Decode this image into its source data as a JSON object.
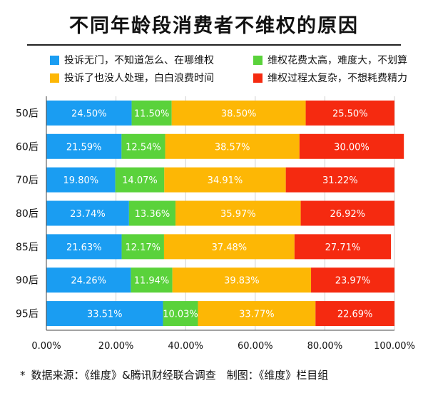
{
  "title": "不同年龄段消费者不维权的原因",
  "legend": [
    {
      "label": "投诉无门，不知道怎么、在哪维权",
      "color": "#1a9df2"
    },
    {
      "label": "维权花费太高，难度大，不划算",
      "color": "#5ad23b"
    },
    {
      "label": "投诉了也没人处理，白白浪费时间",
      "color": "#fdb705"
    },
    {
      "label": "维权过程太复杂，不想耗费精力",
      "color": "#f52a10"
    }
  ],
  "footer": {
    "star": "*",
    "text": "数据来源：《维度》&腾讯财经联合调查　制图：《维度》栏目组"
  },
  "chart_data": {
    "type": "bar",
    "orientation": "horizontal",
    "stacked": true,
    "categories": [
      "50后",
      "60后",
      "70后",
      "80后",
      "85后",
      "90后",
      "95后"
    ],
    "series": [
      {
        "name": "投诉无门，不知道怎么、在哪维权",
        "color": "#1a9df2",
        "values": [
          24.5,
          21.59,
          19.8,
          23.74,
          21.63,
          24.26,
          33.51
        ],
        "labels": [
          "24.50%",
          "21.59%",
          "19.80%",
          "23.74%",
          "21.63%",
          "24.26%",
          "33.51%"
        ]
      },
      {
        "name": "维权花费太高，难度大，不划算",
        "color": "#5ad23b",
        "values": [
          11.5,
          12.54,
          14.07,
          13.36,
          12.17,
          11.94,
          10.03
        ],
        "labels": [
          "11.50%",
          "12.54%",
          "14.07%",
          "13.36%",
          "12.17%",
          "11.94%",
          "10.03%"
        ]
      },
      {
        "name": "投诉了也没人处理，白白浪费时间",
        "color": "#fdb705",
        "values": [
          38.5,
          38.57,
          34.91,
          35.97,
          37.48,
          39.83,
          33.77
        ],
        "labels": [
          "38.50%",
          "38.57%",
          "34.91%",
          "35.97%",
          "37.48%",
          "39.83%",
          "33.77%"
        ]
      },
      {
        "name": "维权过程太复杂，不想耗费精力",
        "color": "#f52a10",
        "values": [
          25.5,
          30.0,
          31.22,
          26.92,
          27.71,
          23.97,
          22.69
        ],
        "labels": [
          "25.50%",
          "30.00%",
          "31.22%",
          "26.92%",
          "27.71%",
          "23.97%",
          "22.69%"
        ]
      }
    ],
    "xlim": [
      0,
      100
    ],
    "xticks": [
      "0.00%",
      "20.00%",
      "40.00%",
      "60.00%",
      "80.00%",
      "100.00%"
    ],
    "grid": true,
    "legend_position": "top"
  }
}
